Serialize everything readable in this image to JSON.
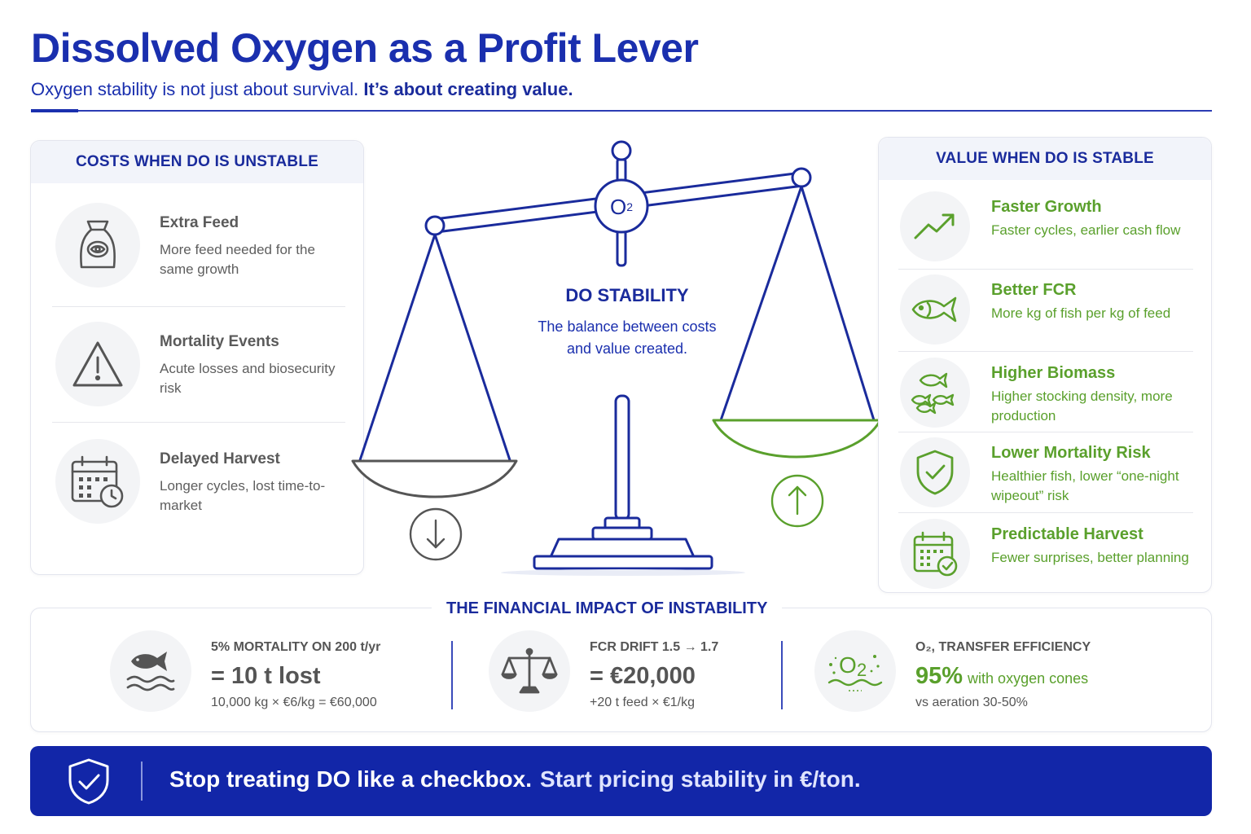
{
  "header": {
    "title": "Dissolved Oxygen as a Profit Lever",
    "subtitle_plain": "Oxygen stability is not just about survival.",
    "subtitle_bold": "It’s about creating value."
  },
  "costs": {
    "heading": "COSTS WHEN DO IS UNSTABLE",
    "items": [
      {
        "title": "Extra Feed",
        "desc": "More feed needed for the same growth",
        "icon": "feed-bag-icon"
      },
      {
        "title": "Mortality Events",
        "desc": "Acute losses and biosecurity risk",
        "icon": "warning-icon"
      },
      {
        "title": "Delayed Harvest",
        "desc": "Longer cycles, lost time-to-market",
        "icon": "calendar-clock-icon"
      }
    ]
  },
  "center": {
    "o2": "O",
    "o2_sub": "2",
    "title": "DO STABILITY",
    "desc": "The balance between costs and value created."
  },
  "value": {
    "heading": "VALUE WHEN DO IS STABLE",
    "items": [
      {
        "title": "Faster Growth",
        "desc": "Faster cycles, earlier cash flow",
        "icon": "trend-up-icon"
      },
      {
        "title": "Better FCR",
        "desc": "More kg of fish per kg of feed",
        "icon": "fish-icon"
      },
      {
        "title": "Higher Biomass",
        "desc": "Higher stocking density, more production",
        "icon": "fish-school-icon"
      },
      {
        "title": "Lower Mortality Risk",
        "desc": "Healthier fish, lower “one-night wipeout” risk",
        "icon": "shield-check-icon"
      },
      {
        "title": "Predictable Harvest",
        "desc": "Fewer surprises, better planning",
        "icon": "calendar-check-icon"
      }
    ]
  },
  "financial": {
    "heading": "THE FINANCIAL IMPACT OF INSTABILITY",
    "blocks": [
      {
        "label": "5% MORTALITY ON 200 t/yr",
        "big": "= 10 t lost",
        "small": "10,000 kg × €6/kg = €60,000",
        "icon": "fish-water-icon"
      },
      {
        "label": "FCR DRIFT 1.5 → 1.7",
        "big": "= €20,000",
        "small": "+20 t feed × €1/kg",
        "icon": "scale-icon"
      },
      {
        "label": "O₂, TRANSFER EFFICIENCY",
        "big": "95%",
        "big_note": "with oxygen cones",
        "small": "vs aeration 30-50%",
        "icon": "o2-bubbles-icon"
      }
    ]
  },
  "banner": {
    "text": "Stop treating DO like a checkbox.",
    "text2": "Start pricing stability in €/ton."
  },
  "colors": {
    "brand_blue": "#1a2fae",
    "green": "#5aa02c",
    "gray": "#555555"
  }
}
